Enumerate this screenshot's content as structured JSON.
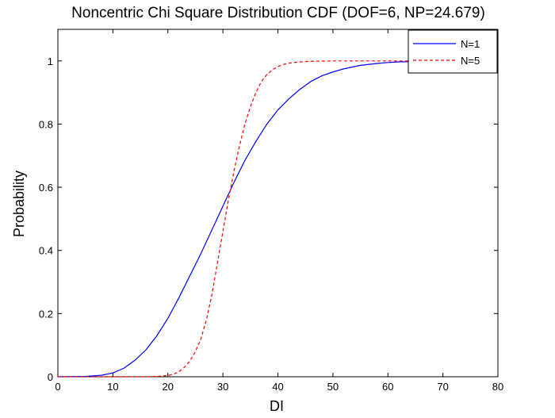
{
  "chart_data": {
    "type": "line",
    "title": "Noncentric Chi Square Distribution CDF (DOF=6, NP=24.679)",
    "xlabel": "DI",
    "ylabel": "Probability",
    "xlim": [
      0,
      80
    ],
    "ylim": [
      0,
      1.1
    ],
    "xticks": [
      0,
      10,
      20,
      30,
      40,
      50,
      60,
      70,
      80
    ],
    "yticks": [
      0,
      0.2,
      0.4,
      0.6,
      0.8,
      1
    ],
    "grid": false,
    "legend_position": "top-right",
    "series": [
      {
        "name": "N=1",
        "color": "#0000ff",
        "style": "solid",
        "x": [
          0,
          5,
          8,
          10,
          12,
          14,
          16,
          18,
          20,
          22,
          24,
          26,
          28,
          30,
          32,
          34,
          36,
          38,
          40,
          42,
          44,
          46,
          48,
          50,
          52,
          55,
          58,
          60,
          62,
          65,
          70,
          75,
          80
        ],
        "y": [
          0,
          0.001,
          0.005,
          0.012,
          0.027,
          0.052,
          0.085,
          0.13,
          0.185,
          0.25,
          0.32,
          0.39,
          0.465,
          0.54,
          0.615,
          0.685,
          0.745,
          0.8,
          0.845,
          0.88,
          0.91,
          0.935,
          0.953,
          0.965,
          0.975,
          0.986,
          0.992,
          0.995,
          0.997,
          0.998,
          0.999,
          1.0,
          1.0
        ]
      },
      {
        "name": "N=5",
        "color": "#ff0000",
        "style": "dashed",
        "x": [
          0,
          10,
          15,
          18,
          20,
          21,
          22,
          23,
          24,
          25,
          26,
          27,
          28,
          29,
          30,
          31,
          32,
          33,
          34,
          35,
          36,
          37,
          38,
          39,
          40,
          41,
          42,
          44,
          46,
          50,
          60,
          80
        ],
        "y": [
          0,
          0,
          0,
          0.001,
          0.004,
          0.008,
          0.016,
          0.03,
          0.05,
          0.08,
          0.12,
          0.18,
          0.26,
          0.36,
          0.46,
          0.56,
          0.65,
          0.73,
          0.8,
          0.855,
          0.9,
          0.935,
          0.957,
          0.972,
          0.982,
          0.989,
          0.993,
          0.997,
          0.999,
          1.0,
          1.0,
          1.0
        ]
      }
    ]
  }
}
